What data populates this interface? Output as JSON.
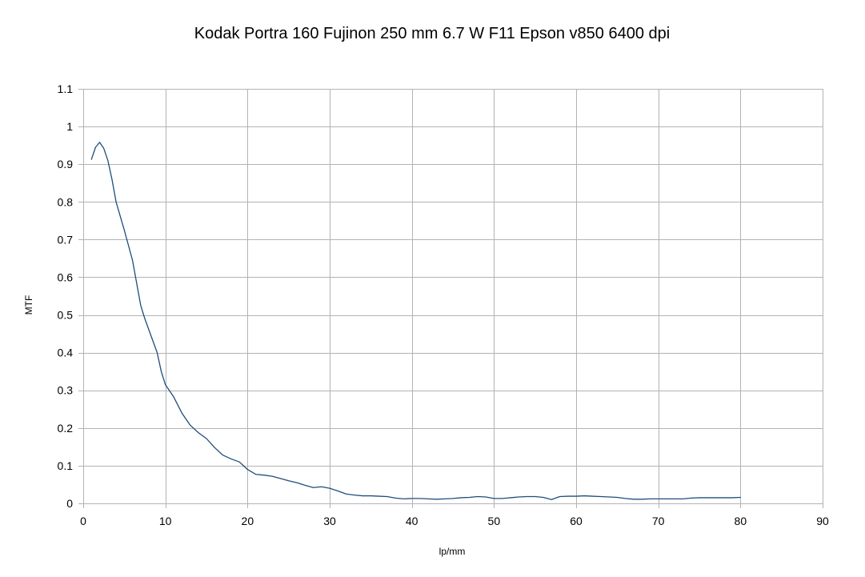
{
  "chart_data": {
    "type": "line",
    "title": "Kodak Portra 160 Fujinon 250 mm 6.7 W F11  Epson v850 6400 dpi",
    "xlabel": "lp/mm",
    "ylabel": "MTF",
    "xlim": [
      0,
      90
    ],
    "ylim": [
      0,
      1.1
    ],
    "x_ticks": [
      0,
      10,
      20,
      30,
      40,
      50,
      60,
      70,
      80,
      90
    ],
    "y_ticks": [
      0,
      0.1,
      0.2,
      0.3,
      0.4,
      0.5,
      0.6,
      0.7,
      0.8,
      0.9,
      1,
      1.1
    ],
    "x_tick_labels": [
      "0",
      "10",
      "20",
      "30",
      "40",
      "50",
      "60",
      "70",
      "80",
      "90"
    ],
    "y_tick_labels": [
      "0",
      "0.1",
      "0.2",
      "0.3",
      "0.4",
      "0.5",
      "0.6",
      "0.7",
      "0.8",
      "0.9",
      "1",
      "1.1"
    ],
    "grid": true,
    "legend": "none",
    "colors": {
      "line": "#1f4e79",
      "grid": "#b3b3b3",
      "axis": "#b3b3b3"
    },
    "series": [
      {
        "x": [
          1,
          1.5,
          2,
          2.5,
          3,
          3.5,
          4,
          5,
          6,
          7,
          7.5,
          8,
          9,
          9.5,
          10,
          11,
          12,
          13,
          14,
          15,
          16,
          17,
          18,
          19,
          19.5,
          20,
          21,
          22,
          23,
          24,
          25,
          26,
          27,
          28,
          29,
          30,
          31,
          32,
          33,
          34,
          35,
          36,
          37,
          38,
          39,
          40,
          41,
          42,
          43,
          44,
          45,
          46,
          47,
          48,
          49,
          50,
          51,
          52,
          53,
          54,
          55,
          56,
          57,
          58,
          59,
          60,
          61,
          62,
          63,
          64,
          65,
          66,
          67,
          68,
          69,
          70,
          71,
          72,
          73,
          74,
          75,
          76,
          77,
          78,
          79,
          80
        ],
        "y": [
          0.913,
          0.945,
          0.958,
          0.942,
          0.91,
          0.86,
          0.8,
          0.725,
          0.645,
          0.525,
          0.49,
          0.46,
          0.4,
          0.35,
          0.315,
          0.283,
          0.24,
          0.208,
          0.188,
          0.172,
          0.148,
          0.128,
          0.118,
          0.11,
          0.1,
          0.09,
          0.077,
          0.075,
          0.072,
          0.066,
          0.06,
          0.055,
          0.048,
          0.042,
          0.044,
          0.04,
          0.033,
          0.025,
          0.022,
          0.02,
          0.02,
          0.019,
          0.018,
          0.014,
          0.012,
          0.013,
          0.013,
          0.012,
          0.011,
          0.012,
          0.013,
          0.015,
          0.016,
          0.018,
          0.017,
          0.013,
          0.013,
          0.015,
          0.017,
          0.018,
          0.018,
          0.016,
          0.01,
          0.018,
          0.019,
          0.019,
          0.02,
          0.019,
          0.018,
          0.017,
          0.016,
          0.013,
          0.011,
          0.011,
          0.012,
          0.012,
          0.012,
          0.012,
          0.012,
          0.014,
          0.015,
          0.015,
          0.015,
          0.015,
          0.015,
          0.016
        ]
      }
    ]
  }
}
